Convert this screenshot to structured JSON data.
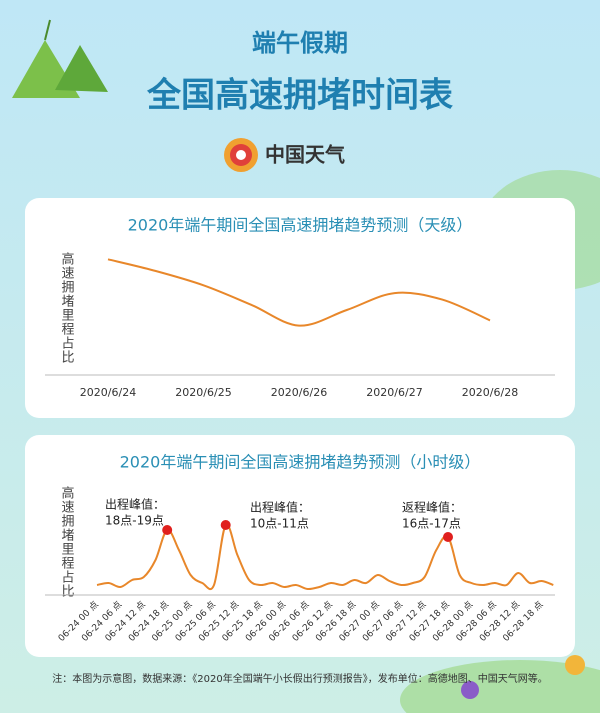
{
  "header": {
    "subtitle": "端午假期",
    "title": "全国高速拥堵时间表",
    "logo": "中国天气"
  },
  "chart_data": [
    {
      "type": "line",
      "title": "2020年端午期间全国高速拥堵趋势预测（天级）",
      "y_label": "高速拥堵里程占比",
      "categories": [
        "2020/6/24",
        null,
        "2020/6/25",
        null,
        "2020/6/26",
        null,
        "2020/6/27",
        null,
        "2020/6/28"
      ],
      "series": [
        {
          "name": "高速拥堵里程占比",
          "color": "#e8872a",
          "values": [
            89,
            80,
            69,
            54,
            38,
            50,
            63,
            58,
            42
          ]
        }
      ],
      "ylim": [
        0,
        100
      ]
    },
    {
      "type": "line",
      "title": "2020年端午期间全国高速拥堵趋势预测（小时级）",
      "y_label": "高速拥堵里程占比",
      "categories": [
        "06-24 00 点",
        null,
        "06-24 06 点",
        null,
        "06-24 12 点",
        null,
        "06-24 18 点",
        null,
        "06-25 00 点",
        null,
        "06-25 06 点",
        null,
        "06-25 12 点",
        null,
        "06-25 18 点",
        null,
        "06-26 00 点",
        null,
        "06-26 06 点",
        null,
        "06-26 12 点",
        null,
        "06-26 18 点",
        null,
        "06-27 00 点",
        null,
        "06-27 06 点",
        null,
        "06-27 12 点",
        null,
        "06-27 18 点",
        null,
        "06-28 00 点",
        null,
        "06-28 06 点",
        null,
        "06-28 12 点",
        null,
        "06-28 18 点",
        null
      ],
      "series": [
        {
          "name": "高速拥堵里程占比",
          "color": "#e8872a",
          "values": [
            10,
            12,
            8,
            15,
            18,
            35,
            65,
            45,
            20,
            12,
            10,
            70,
            40,
            15,
            10,
            12,
            8,
            10,
            6,
            8,
            12,
            10,
            15,
            12,
            20,
            14,
            10,
            12,
            18,
            45,
            58,
            20,
            12,
            10,
            12,
            10,
            22,
            12,
            14,
            10
          ]
        }
      ],
      "peak_color": "#e0201e",
      "annotations": [
        [
          "出程峰值：",
          "18点-19点"
        ],
        [
          "出程峰值：",
          "10点-11点"
        ],
        [
          "返程峰值：",
          "16点-17点"
        ]
      ],
      "ylim": [
        0,
        100
      ]
    }
  ],
  "footnote": "注：本图为示意图，数据来源：《2020年全国端午小长假出行预测报告》，发布单位：高德地图、中国天气网等。"
}
